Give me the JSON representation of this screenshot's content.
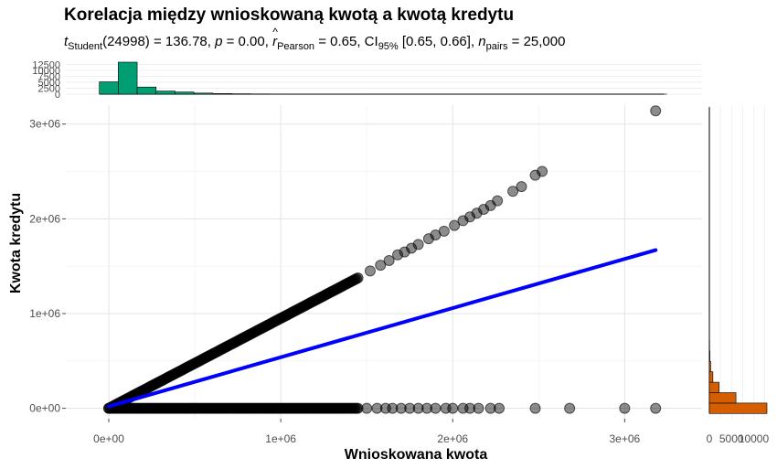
{
  "chart_data": {
    "type": "scatter",
    "title": "Korelacja między wnioskowaną kwotą a kwotą kredytu",
    "subtitle": {
      "t_label": "t",
      "t_sub": "Student",
      "t_value": "(24998) = 136.78, ",
      "p_label": "p",
      "p_value": " = 0.00, ",
      "r_label": "r",
      "r_sub": "Pearson",
      "r_value": " = 0.65, CI",
      "ci_sub": "95%",
      "ci_value": " [0.65, 0.66], ",
      "n_label": "n",
      "n_sub": "pairs",
      "n_value": " = 25,000"
    },
    "xlabel": "Wnioskowana kwota",
    "ylabel": "Kwota kredytu",
    "xlim": [
      -250000,
      3450000
    ],
    "ylim": [
      -110000,
      3200000
    ],
    "x_ticks": [
      0,
      1000000,
      2000000,
      3000000
    ],
    "x_tick_labels": [
      "0e+00",
      "1e+06",
      "2e+06",
      "3e+06"
    ],
    "y_ticks": [
      0,
      1000000,
      2000000,
      3000000
    ],
    "y_tick_labels": [
      "0e+00",
      "1e+06",
      "2e+06",
      "3e+06"
    ],
    "grid": true,
    "point_color": "#000000",
    "line_color": "#0000ff",
    "regression_line": [
      [
        0,
        20000
      ],
      [
        3180000,
        1670000
      ]
    ],
    "diagonal_band": {
      "x_from": 0,
      "x_to": 1450000,
      "slope": 0.95
    },
    "points_on_diagonal": [
      [
        1520000,
        1450000
      ],
      [
        1580000,
        1510000
      ],
      [
        1630000,
        1560000
      ],
      [
        1680000,
        1620000
      ],
      [
        1720000,
        1650000
      ],
      [
        1760000,
        1690000
      ],
      [
        1800000,
        1730000
      ],
      [
        1860000,
        1790000
      ],
      [
        1900000,
        1830000
      ],
      [
        1950000,
        1870000
      ],
      [
        2010000,
        1930000
      ],
      [
        2060000,
        1980000
      ],
      [
        2100000,
        2020000
      ],
      [
        2140000,
        2060000
      ],
      [
        2180000,
        2100000
      ],
      [
        2220000,
        2140000
      ],
      [
        2260000,
        2190000
      ],
      [
        2350000,
        2290000
      ],
      [
        2400000,
        2340000
      ],
      [
        2480000,
        2460000
      ],
      [
        2520000,
        2500000
      ],
      [
        3180000,
        3140000
      ]
    ],
    "points_on_zero": [
      1500000,
      1560000,
      1610000,
      1650000,
      1700000,
      1750000,
      1800000,
      1850000,
      1900000,
      1960000,
      2000000,
      2060000,
      2100000,
      2150000,
      2220000,
      2270000,
      2480000,
      2680000,
      3000000,
      3180000
    ],
    "zero_band": {
      "x_from": 0,
      "x_to": 1450000
    },
    "top_histogram": {
      "color": "#009e73",
      "bin_centers": [
        0,
        110000,
        220000,
        330000,
        440000,
        550000,
        660000,
        770000,
        880000,
        990000,
        1100000,
        1210000,
        1320000,
        1430000,
        1540000,
        1650000,
        1760000,
        1870000,
        1980000,
        2090000,
        2200000,
        2310000,
        2420000,
        2530000,
        2640000,
        2750000,
        2860000,
        2970000,
        3080000,
        3190000
      ],
      "counts": [
        5200,
        13500,
        3000,
        1300,
        900,
        450,
        250,
        160,
        100,
        70,
        40,
        25,
        20,
        15,
        10,
        8,
        6,
        5,
        4,
        3,
        3,
        2,
        2,
        2,
        1,
        1,
        1,
        1,
        1,
        1
      ],
      "y_ticks": [
        0,
        2500,
        5000,
        7500,
        10000,
        12500
      ],
      "y_tick_labels": [
        "0",
        "2500",
        "5000",
        "7500",
        "10000",
        "12500"
      ]
    },
    "right_histogram": {
      "color": "#d55e00",
      "bin_centers": [
        0,
        110000,
        220000,
        330000,
        440000,
        550000,
        660000,
        770000,
        880000,
        990000
      ],
      "counts": [
        13000,
        6000,
        2200,
        800,
        300,
        120,
        60,
        30,
        20,
        10
      ],
      "x_ticks": [
        0,
        5000,
        10000
      ],
      "x_tick_labels": [
        "0",
        "5000",
        "10000"
      ]
    }
  }
}
